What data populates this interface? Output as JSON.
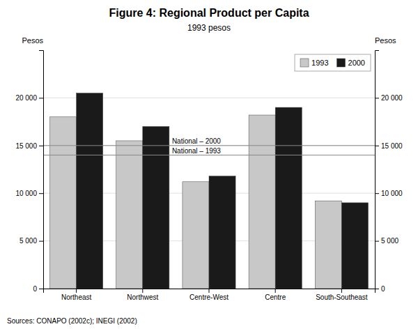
{
  "chart_data": {
    "type": "bar",
    "title": "Figure 4: Regional Product per Capita",
    "subtitle": "1993 pesos",
    "categories": [
      "Northeast",
      "Northwest",
      "Centre-West",
      "Centre",
      "South-Southeast"
    ],
    "series": [
      {
        "name": "1993",
        "color": "#c8c8c8",
        "values": [
          18000,
          15500,
          11200,
          18200,
          9200
        ]
      },
      {
        "name": "2000",
        "color": "#1a1a1a",
        "values": [
          20500,
          17000,
          11800,
          19000,
          9000
        ]
      }
    ],
    "reference_lines": [
      {
        "value": 15000,
        "label": "National – 2000"
      },
      {
        "value": 14000,
        "label": "National – 1993"
      }
    ],
    "ylabel": "Pesos",
    "y2label": "Pesos",
    "ylim": [
      0,
      25000
    ],
    "yticks": [
      0,
      {
        "value": 5000,
        "label": "5 000"
      },
      {
        "value": 10000,
        "label": "10 000"
      },
      {
        "value": 15000,
        "label": "15 000"
      },
      {
        "value": 20000,
        "label": "20 000"
      }
    ],
    "y2lim": [
      0,
      25000
    ],
    "y2ticks": [
      0,
      {
        "value": 5000,
        "label": "5 000"
      },
      {
        "value": 10000,
        "label": "10 000"
      },
      {
        "value": 15000,
        "label": "15 000"
      },
      {
        "value": 20000,
        "label": "20 000"
      }
    ],
    "source": "Sources: CONAPO (2002c); INEGI (2002)",
    "grid": true,
    "legend": "upper right"
  }
}
